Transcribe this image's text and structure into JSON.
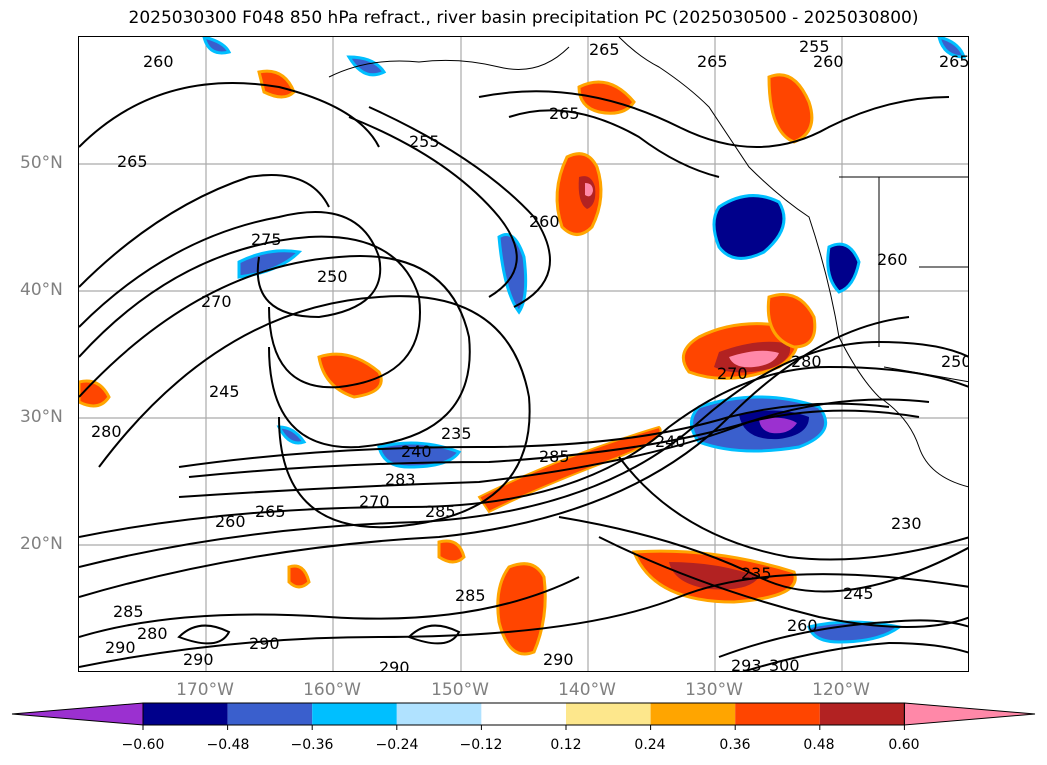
{
  "title": "2025030300 F048 850 hPa refract., river basin precipitation PC (2025030500 - 2025030800)",
  "lat_labels": [
    "50°N",
    "40°N",
    "30°N",
    "20°N"
  ],
  "lon_labels": [
    "170°W",
    "160°W",
    "150°W",
    "140°W",
    "130°W",
    "120°W"
  ],
  "contour_labels": [
    "260",
    "265",
    "255",
    "260",
    "265",
    "265",
    "265",
    "255",
    "260",
    "265",
    "275",
    "250",
    "270",
    "245",
    "280",
    "235",
    "240",
    "285",
    "283",
    "270",
    "265",
    "260",
    "285",
    "240",
    "270",
    "280",
    "260",
    "230",
    "235",
    "245",
    "260",
    "285",
    "290",
    "290",
    "290",
    "290",
    "300",
    "293",
    "250",
    "280",
    "285",
    "290"
  ],
  "colorbar": {
    "ticks": [
      "−0.60",
      "−0.48",
      "−0.36",
      "−0.24",
      "−0.12",
      "0.12",
      "0.24",
      "0.36",
      "0.48",
      "0.60"
    ],
    "colors": [
      "#9b30d0",
      "#00008b",
      "#3a5fcd",
      "#00bfff",
      "#b0e2ff",
      "#ffffff",
      "#fde78c",
      "#ffa500",
      "#ff4500",
      "#b22222",
      "#ff88a8"
    ]
  }
}
